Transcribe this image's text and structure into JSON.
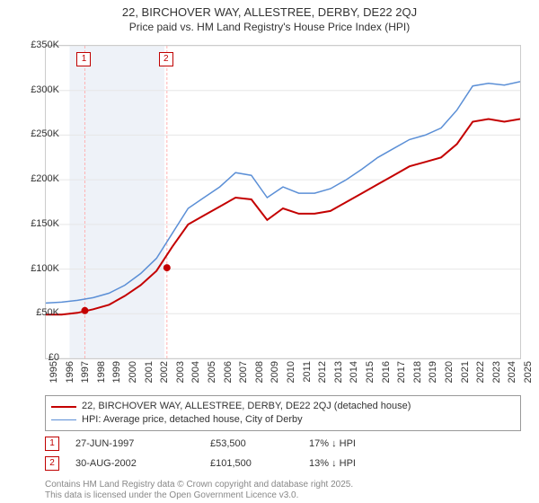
{
  "title": "22, BIRCHOVER WAY, ALLESTREE, DERBY, DE22 2QJ",
  "subtitle": "Price paid vs. HM Land Registry's House Price Index (HPI)",
  "chart": {
    "type": "line",
    "background_color": "#ffffff",
    "plot_border_color": "#cccccc",
    "grid_color": "#e6e6e6",
    "band_color": "#eef2f8",
    "sale_line_color": "#ffb3b3",
    "y": {
      "min": 0,
      "max": 350000,
      "tick_step": 50000,
      "tick_labels": [
        "£0",
        "£50K",
        "£100K",
        "£150K",
        "£200K",
        "£250K",
        "£300K",
        "£350K"
      ],
      "label_fontsize": 11
    },
    "x": {
      "min": 1995,
      "max": 2025,
      "tick_step": 1,
      "tick_labels": [
        "1995",
        "1996",
        "1997",
        "1998",
        "1999",
        "2000",
        "2001",
        "2002",
        "2003",
        "2004",
        "2005",
        "2006",
        "2007",
        "2008",
        "2009",
        "2010",
        "2011",
        "2012",
        "2013",
        "2014",
        "2015",
        "2016",
        "2017",
        "2018",
        "2019",
        "2020",
        "2021",
        "2022",
        "2023",
        "2024",
        "2025"
      ],
      "label_fontsize": 11
    },
    "series": [
      {
        "name": "property",
        "label": "22, BIRCHOVER WAY, ALLESTREE, DERBY, DE22 2QJ (detached house)",
        "color": "#c40000",
        "line_width": 2,
        "y_by_year": {
          "1995": 49000,
          "1996": 49000,
          "1997": 51000,
          "1998": 55000,
          "1999": 60000,
          "2000": 70000,
          "2001": 82000,
          "2002": 98000,
          "2003": 125000,
          "2004": 150000,
          "2005": 160000,
          "2006": 170000,
          "2007": 180000,
          "2008": 178000,
          "2009": 155000,
          "2010": 168000,
          "2011": 162000,
          "2012": 162000,
          "2013": 165000,
          "2014": 175000,
          "2015": 185000,
          "2016": 195000,
          "2017": 205000,
          "2018": 215000,
          "2019": 220000,
          "2020": 225000,
          "2021": 240000,
          "2022": 265000,
          "2023": 268000,
          "2024": 265000,
          "2025": 268000
        }
      },
      {
        "name": "hpi",
        "label": "HPI: Average price, detached house, City of Derby",
        "color": "#5b8fd6",
        "line_width": 1.5,
        "y_by_year": {
          "1995": 62000,
          "1996": 63000,
          "1997": 65000,
          "1998": 68000,
          "1999": 73000,
          "2000": 82000,
          "2001": 95000,
          "2002": 112000,
          "2003": 140000,
          "2004": 168000,
          "2005": 180000,
          "2006": 192000,
          "2007": 208000,
          "2008": 205000,
          "2009": 180000,
          "2010": 192000,
          "2011": 185000,
          "2012": 185000,
          "2013": 190000,
          "2014": 200000,
          "2015": 212000,
          "2016": 225000,
          "2017": 235000,
          "2018": 245000,
          "2019": 250000,
          "2020": 258000,
          "2021": 278000,
          "2022": 305000,
          "2023": 308000,
          "2024": 306000,
          "2025": 310000
        }
      }
    ],
    "bands": [
      {
        "from": 1996.5,
        "to": 2002.5
      }
    ],
    "sale_markers": [
      {
        "id": "1",
        "year": 1997.47,
        "price": 53500
      },
      {
        "id": "2",
        "year": 2002.66,
        "price": 101500
      }
    ]
  },
  "legend": {
    "rows": [
      {
        "color": "#c40000",
        "width": 2,
        "label_path": "chart.series.0.label"
      },
      {
        "color": "#5b8fd6",
        "width": 1.5,
        "label_path": "chart.series.1.label"
      }
    ]
  },
  "sales": [
    {
      "id": "1",
      "date": "27-JUN-1997",
      "price": "£53,500",
      "delta": "17% ↓ HPI"
    },
    {
      "id": "2",
      "date": "30-AUG-2002",
      "price": "£101,500",
      "delta": "13% ↓ HPI"
    }
  ],
  "footer": {
    "line1": "Contains HM Land Registry data © Crown copyright and database right 2025.",
    "line2": "This data is licensed under the Open Government Licence v3.0."
  }
}
